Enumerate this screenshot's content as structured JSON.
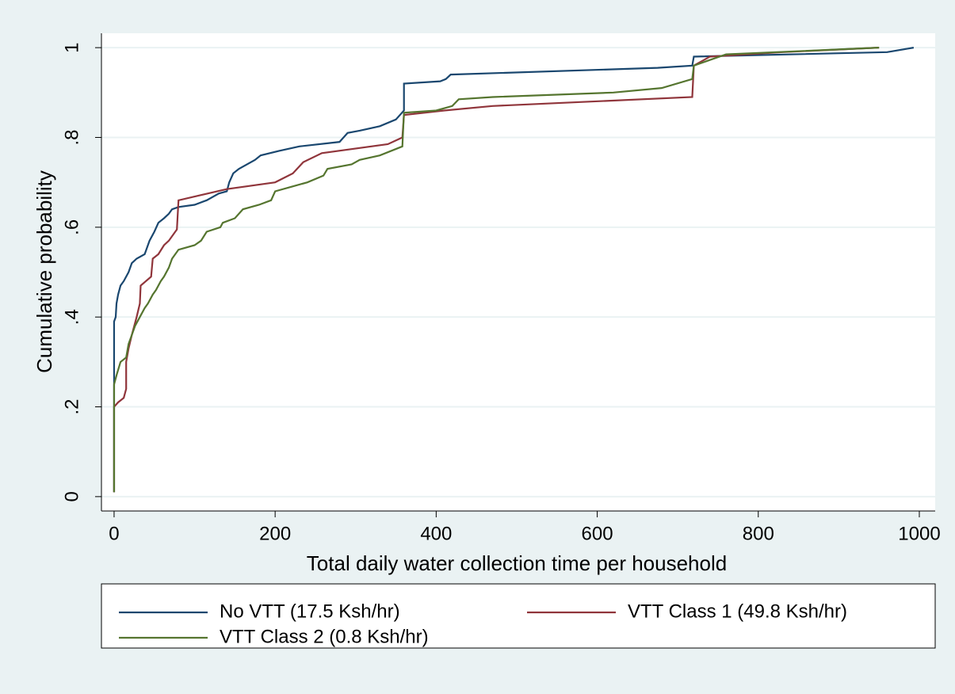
{
  "chart_data": {
    "type": "line",
    "x_label": "Total daily water collection time per household",
    "y_label": "Cumulative probability",
    "xlim": [
      -15.7,
      1019.7
    ],
    "ylim": [
      -0.032,
      1.032
    ],
    "xticks": [
      0,
      200,
      400,
      600,
      800,
      1000
    ],
    "yticks": [
      0,
      {
        "value": 0.2,
        "label": ".2"
      },
      {
        "value": 0.4,
        "label": ".4"
      },
      {
        "value": 0.6,
        "label": ".6"
      },
      {
        "value": 0.8,
        "label": ".8"
      },
      1
    ],
    "grid": true,
    "series": [
      {
        "name": "No VTT (17.5 Ksh/hr)",
        "color": "#1a476f",
        "x": [
          0,
          0,
          2,
          3,
          5,
          8,
          12,
          18,
          22,
          28,
          38,
          44,
          50,
          55,
          62,
          68,
          72,
          80,
          100,
          115,
          130,
          140,
          143,
          148,
          155,
          175,
          182,
          205,
          230,
          280,
          290,
          305,
          330,
          350,
          360,
          360,
          405,
          412,
          418,
          675,
          718,
          720,
          960,
          993
        ],
        "values": [
          0.01,
          0.39,
          0.4,
          0.43,
          0.45,
          0.47,
          0.48,
          0.5,
          0.52,
          0.53,
          0.54,
          0.57,
          0.59,
          0.61,
          0.62,
          0.63,
          0.64,
          0.645,
          0.65,
          0.66,
          0.675,
          0.68,
          0.7,
          0.72,
          0.73,
          0.75,
          0.76,
          0.77,
          0.78,
          0.79,
          0.81,
          0.815,
          0.825,
          0.84,
          0.86,
          0.92,
          0.925,
          0.93,
          0.94,
          0.955,
          0.96,
          0.98,
          0.99,
          1.0
        ]
      },
      {
        "name": "VTT Class 1 (49.8 Ksh/hr)",
        "color": "#90353b",
        "x": [
          0,
          0,
          5,
          12,
          15,
          15,
          18,
          22,
          28,
          32,
          33,
          46,
          48,
          55,
          62,
          68,
          78,
          80,
          140,
          200,
          222,
          235,
          258,
          340,
          358,
          360,
          410,
          470,
          718,
          720,
          740,
          830,
          950
        ],
        "values": [
          0.01,
          0.2,
          0.21,
          0.22,
          0.24,
          0.3,
          0.33,
          0.36,
          0.4,
          0.43,
          0.47,
          0.49,
          0.53,
          0.54,
          0.56,
          0.57,
          0.595,
          0.66,
          0.685,
          0.7,
          0.72,
          0.745,
          0.765,
          0.785,
          0.8,
          0.85,
          0.86,
          0.87,
          0.89,
          0.96,
          0.98,
          0.99,
          1.0
        ]
      },
      {
        "name": "VTT Class 2 (0.8 Ksh/hr)",
        "color": "#55752f",
        "x": [
          0,
          0,
          3,
          8,
          15,
          18,
          22,
          26,
          32,
          38,
          42,
          48,
          52,
          58,
          62,
          68,
          72,
          80,
          100,
          108,
          115,
          132,
          135,
          150,
          160,
          180,
          195,
          200,
          220,
          240,
          260,
          265,
          295,
          305,
          330,
          358,
          360,
          400,
          420,
          428,
          470,
          620,
          680,
          718,
          720,
          760,
          950
        ],
        "values": [
          0.01,
          0.25,
          0.27,
          0.3,
          0.31,
          0.34,
          0.36,
          0.38,
          0.4,
          0.42,
          0.43,
          0.45,
          0.46,
          0.48,
          0.49,
          0.51,
          0.53,
          0.55,
          0.56,
          0.57,
          0.59,
          0.6,
          0.61,
          0.62,
          0.64,
          0.65,
          0.66,
          0.68,
          0.69,
          0.7,
          0.715,
          0.73,
          0.74,
          0.75,
          0.76,
          0.78,
          0.855,
          0.86,
          0.87,
          0.885,
          0.89,
          0.9,
          0.91,
          0.93,
          0.96,
          0.985,
          1.0
        ]
      }
    ]
  }
}
